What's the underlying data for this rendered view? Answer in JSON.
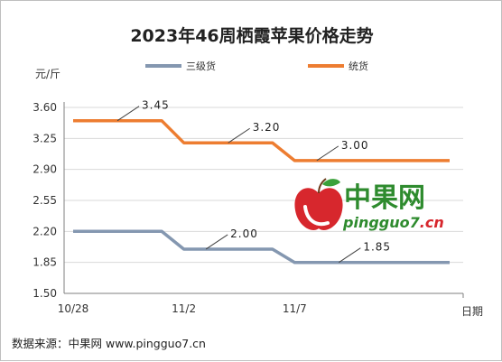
{
  "chart_data": {
    "type": "line",
    "title": "2023年46周栖霞苹果价格走势",
    "ylabel": "元/斤",
    "xlabel": "日期",
    "ylim": [
      1.5,
      3.6
    ],
    "yticks": [
      "3.60",
      "3.25",
      "2.90",
      "2.55",
      "2.20",
      "1.85",
      "1.50"
    ],
    "x_tick_labels": [
      "10/28",
      "11/2",
      "11/7"
    ],
    "x": [
      "10/28",
      "10/29",
      "10/30",
      "10/31",
      "11/1",
      "11/2",
      "11/3",
      "11/4",
      "11/5",
      "11/6",
      "11/7",
      "11/8",
      "11/9",
      "11/10",
      "11/11",
      "11/12",
      "11/13",
      "11/14"
    ],
    "series": [
      {
        "name": "三级货",
        "color": "#8497b0",
        "values": [
          2.2,
          2.2,
          2.2,
          2.2,
          2.2,
          2.0,
          2.0,
          2.0,
          2.0,
          2.0,
          1.85,
          1.85,
          1.85,
          1.85,
          1.85,
          1.85,
          1.85,
          1.85
        ],
        "annotations": [
          {
            "index": 6,
            "value": 2.0,
            "label": "2.00"
          },
          {
            "index": 12,
            "value": 1.85,
            "label": "1.85"
          }
        ]
      },
      {
        "name": "统货",
        "color": "#ed7d31",
        "values": [
          3.45,
          3.45,
          3.45,
          3.45,
          3.45,
          3.2,
          3.2,
          3.2,
          3.2,
          3.2,
          3.0,
          3.0,
          3.0,
          3.0,
          3.0,
          3.0,
          3.0,
          3.0
        ],
        "annotations": [
          {
            "index": 2,
            "value": 3.45,
            "label": "3.45"
          },
          {
            "index": 7,
            "value": 3.2,
            "label": "3.20"
          },
          {
            "index": 11,
            "value": 3.0,
            "label": "3.00"
          }
        ]
      }
    ],
    "grid": true,
    "legend": "top"
  },
  "logo": {
    "name": "中果网",
    "domain": "pingguo7.cn"
  },
  "source_note": "数据来源：中果网 www.pingguo7.cn"
}
